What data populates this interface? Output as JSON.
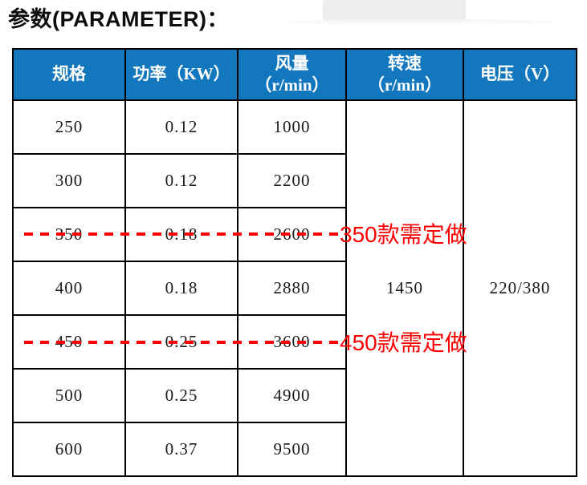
{
  "page": {
    "title": "参数(PARAMETER)："
  },
  "table": {
    "headers": {
      "spec": {
        "line1": "规格",
        "line2": ""
      },
      "power": {
        "line1": "功率（KW）",
        "line2": ""
      },
      "airflow": {
        "line1": "风量",
        "line2": "（r/min）"
      },
      "speed": {
        "line1": "转速",
        "line2": "（r/min）"
      },
      "voltage": {
        "line1": "电压（V）",
        "line2": ""
      }
    },
    "rows": [
      {
        "spec": "250",
        "power": "0.12",
        "airflow": "1000"
      },
      {
        "spec": "300",
        "power": "0.12",
        "airflow": "2200"
      },
      {
        "spec": "350",
        "power": "0.18",
        "airflow": "2600",
        "note": "350款需定做"
      },
      {
        "spec": "400",
        "power": "0.18",
        "airflow": "2880"
      },
      {
        "spec": "450",
        "power": "0.25",
        "airflow": "3600",
        "note": "450款需定做"
      },
      {
        "spec": "500",
        "power": "0.25",
        "airflow": "4900"
      },
      {
        "spec": "600",
        "power": "0.37",
        "airflow": "9500"
      }
    ],
    "merged": {
      "speed": "1450",
      "voltage": "220/380"
    },
    "colors": {
      "header_bg": "#1377be",
      "header_text": "#ffffff",
      "border": "#000000",
      "annotation_red": "#ff0000"
    }
  }
}
